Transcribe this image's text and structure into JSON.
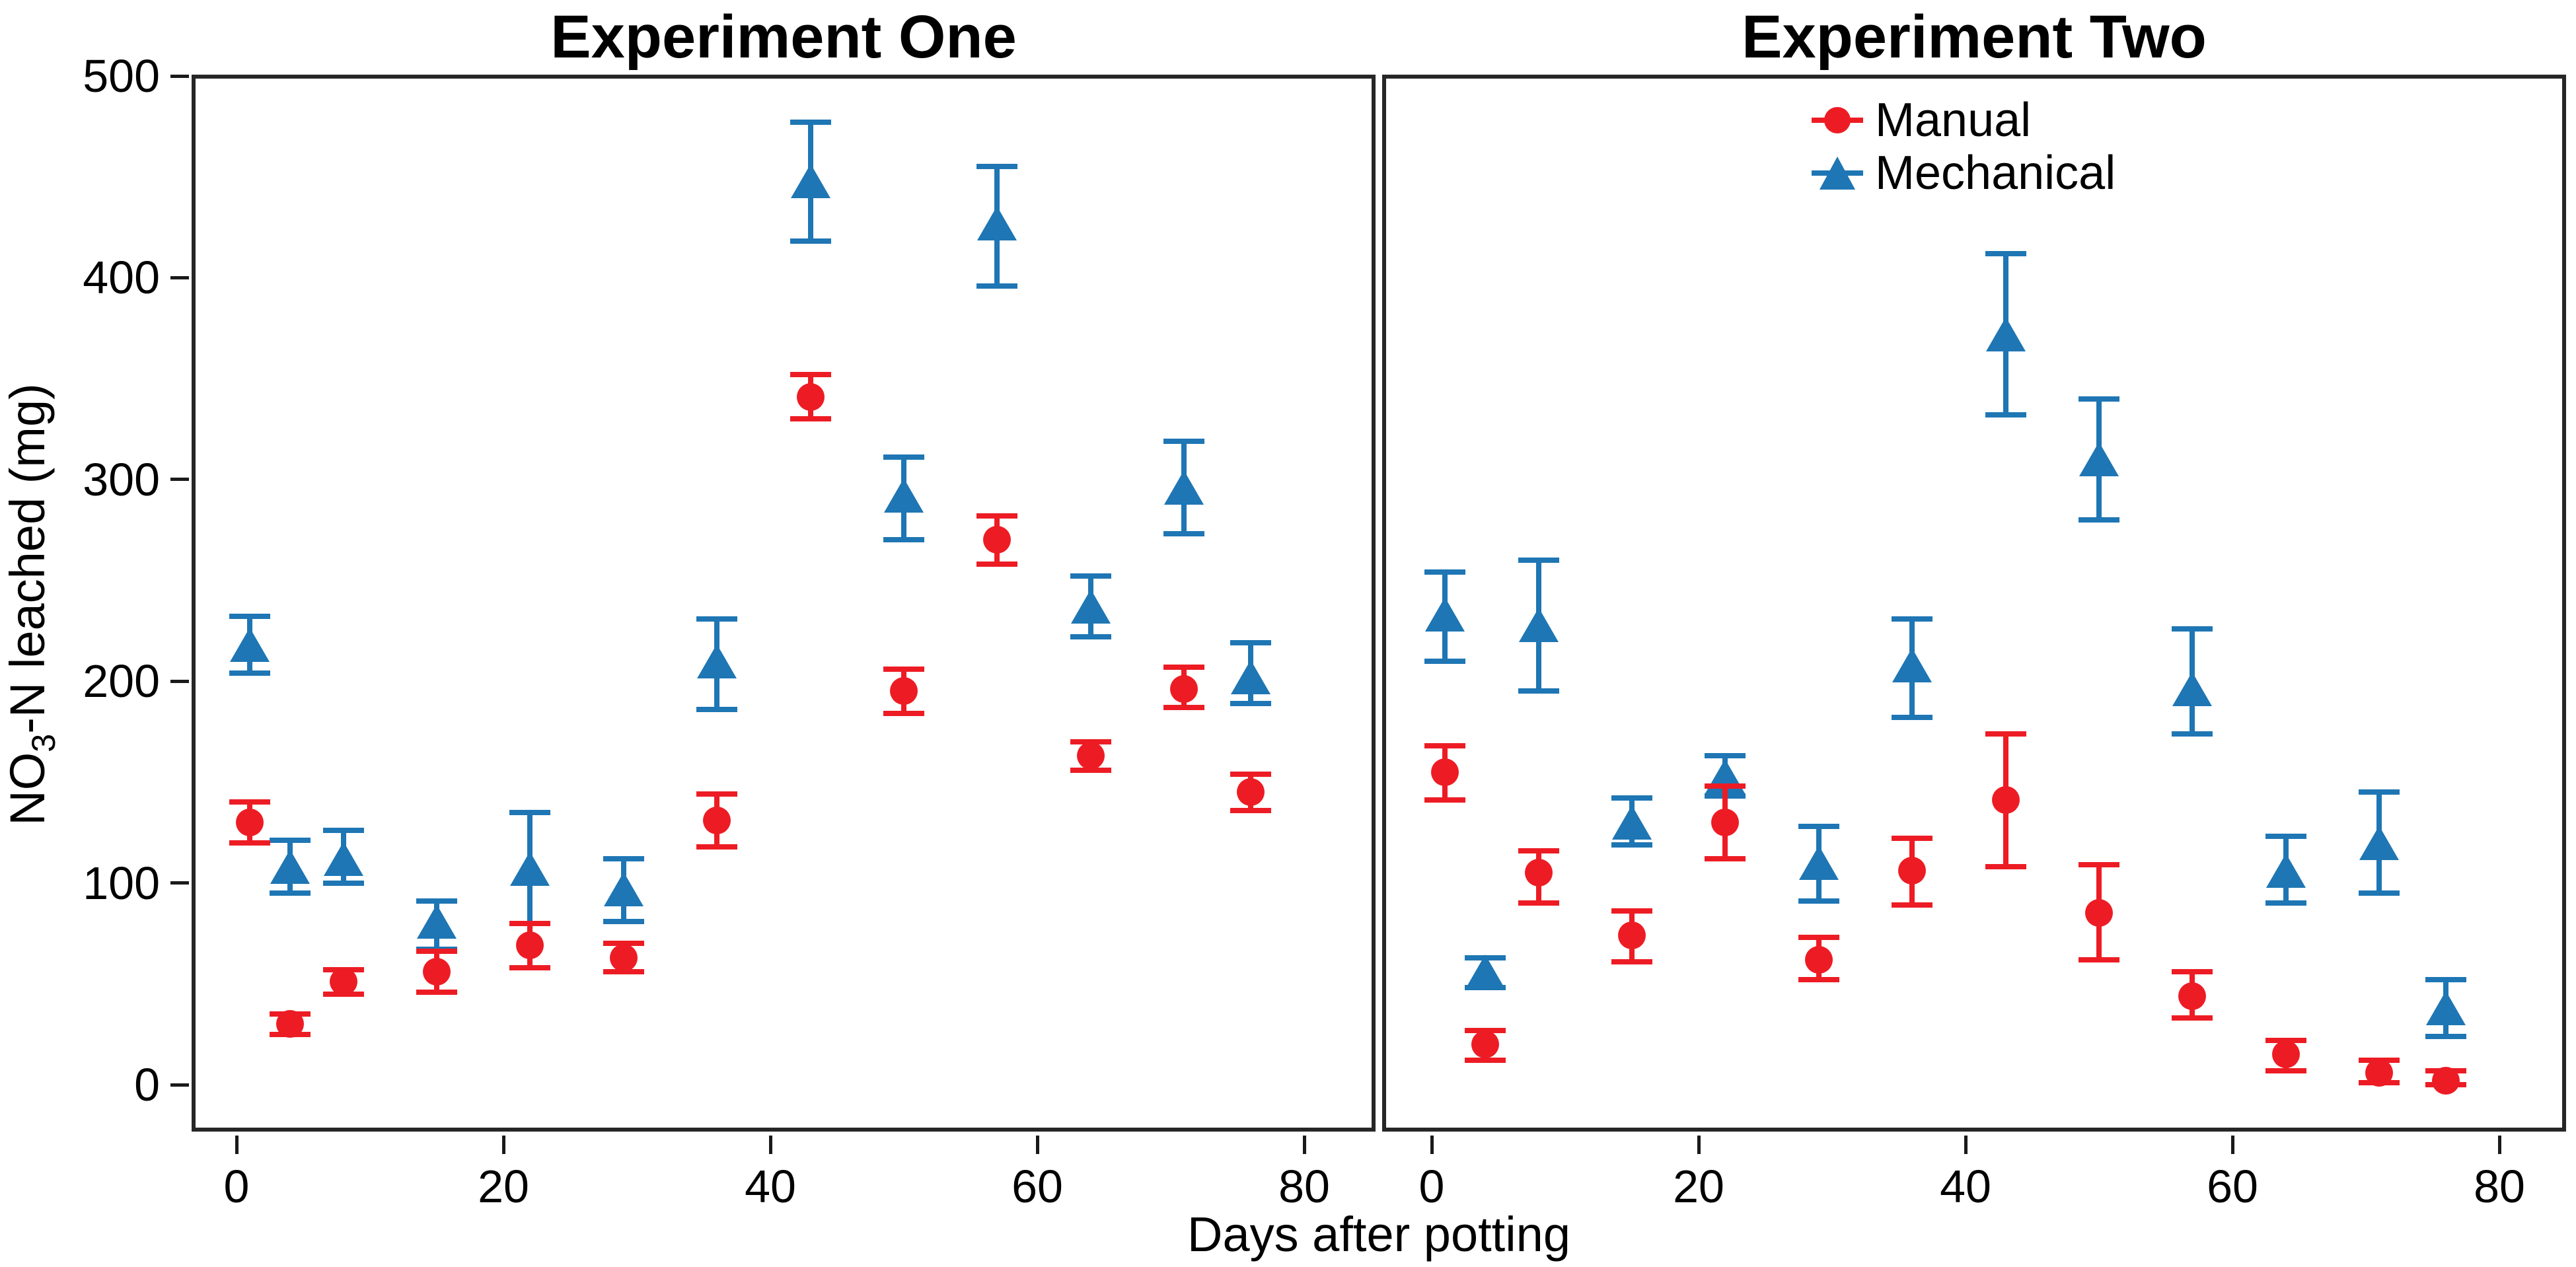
{
  "figure": {
    "x_axis_title": "Days after potting",
    "y_axis_title": {
      "pre": "NO",
      "sub": "3",
      "post": "-N leached (mg)"
    },
    "colors": {
      "manual": "#ED1C24",
      "mechanical": "#1E76B4",
      "axis_text": "#000000",
      "panel_border": "#262626"
    }
  },
  "legend": {
    "items": [
      {
        "label": "Manual",
        "series": "manual",
        "marker": "circle"
      },
      {
        "label": "Mechanical",
        "series": "mechanical",
        "marker": "triangle"
      }
    ]
  },
  "chart_data": [
    {
      "type": "scatter",
      "title": "Experiment One",
      "xlabel": "Days after potting",
      "ylabel": "NO3-N leached (mg)",
      "xlim": [
        -3.4,
        85.3
      ],
      "ylim": [
        0,
        500
      ],
      "grid": false,
      "x_ticks": [
        0,
        20,
        40,
        60,
        80
      ],
      "y_ticks": [
        0,
        100,
        200,
        300,
        400,
        500
      ],
      "x": [
        1,
        4,
        8,
        15,
        22,
        29,
        36,
        43,
        50,
        57,
        64,
        71,
        76
      ],
      "series": [
        {
          "name": "Mechanical",
          "marker": "triangle",
          "color": "#1E76B4",
          "values": [
            218,
            108,
            112,
            81,
            107,
            97,
            210,
            448,
            292,
            427,
            237,
            296,
            202
          ],
          "err_lo": [
            204,
            95,
            100,
            67,
            80,
            81,
            186,
            418,
            270,
            396,
            222,
            273,
            189
          ],
          "err_hi": [
            232,
            121,
            126,
            91,
            135,
            112,
            231,
            477,
            311,
            455,
            252,
            319,
            219
          ]
        },
        {
          "name": "Manual",
          "marker": "circle",
          "color": "#ED1C24",
          "values": [
            130,
            30,
            51,
            56,
            69,
            63,
            131,
            341,
            195,
            270,
            163,
            196,
            145
          ],
          "err_lo": [
            120,
            25,
            45,
            46,
            58,
            56,
            118,
            330,
            184,
            258,
            156,
            187,
            136
          ],
          "err_hi": [
            140,
            35,
            57,
            66,
            80,
            70,
            144,
            352,
            206,
            282,
            170,
            207,
            154
          ]
        }
      ]
    },
    {
      "type": "scatter",
      "title": "Experiment Two",
      "xlabel": "Days after potting",
      "ylabel": "NO3-N leached (mg)",
      "xlim": [
        -3.7,
        85.0
      ],
      "ylim": [
        0,
        500
      ],
      "grid": false,
      "x_ticks": [
        0,
        20,
        40,
        60,
        80
      ],
      "y_ticks": [
        0,
        100,
        200,
        300,
        400,
        500
      ],
      "x": [
        1,
        4,
        8,
        15,
        22,
        29,
        36,
        43,
        50,
        57,
        64,
        71,
        76
      ],
      "series": [
        {
          "name": "Mechanical",
          "marker": "triangle",
          "color": "#1E76B4",
          "values": [
            233,
            56,
            228,
            130,
            153,
            110,
            208,
            372,
            310,
            196,
            106,
            120,
            38
          ],
          "err_lo": [
            210,
            48,
            195,
            119,
            143,
            91,
            182,
            332,
            280,
            174,
            90,
            95,
            24
          ],
          "err_hi": [
            254,
            63,
            260,
            142,
            163,
            128,
            231,
            412,
            340,
            226,
            123,
            145,
            52
          ]
        },
        {
          "name": "Manual",
          "marker": "circle",
          "color": "#ED1C24",
          "values": [
            155,
            20,
            105,
            74,
            130,
            62,
            106,
            141,
            85,
            44,
            15,
            6,
            2
          ],
          "err_lo": [
            141,
            12,
            90,
            61,
            112,
            52,
            89,
            108,
            62,
            33,
            7,
            1,
            0
          ],
          "err_hi": [
            168,
            27,
            116,
            86,
            148,
            73,
            122,
            174,
            109,
            56,
            22,
            12,
            7
          ]
        }
      ]
    }
  ]
}
